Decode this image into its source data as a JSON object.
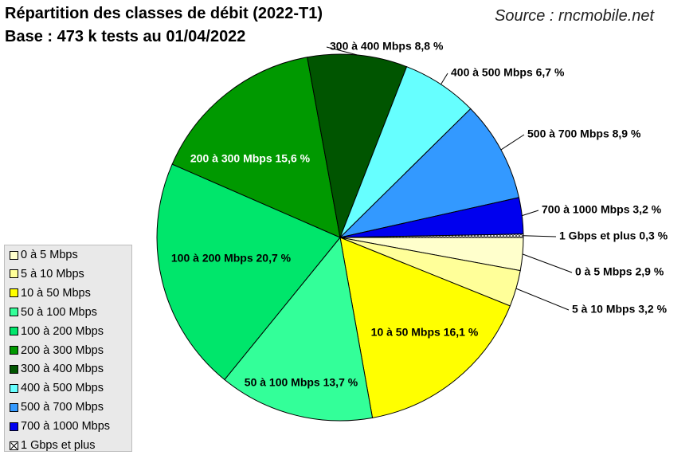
{
  "header": {
    "title": "Répartition des classes de débit (2022-T1)",
    "subtitle": "Base : 473 k tests au 01/04/2022",
    "source": "Source : rncmobile.net"
  },
  "chart_data": {
    "type": "pie",
    "title": "Répartition des classes de débit (2022-T1)",
    "subtitle": "Base : 473 k tests au 01/04/2022",
    "unit": "%",
    "start_direction": "right (3 o'clock), slices proceed clockwise starting from '0 à 5 Mbps'",
    "slices": [
      {
        "name": "0 à 5 Mbps",
        "value": 2.9,
        "label": "0 à 5 Mbps 2,9 %",
        "color": "#ffffcc"
      },
      {
        "name": "5 à 10 Mbps",
        "value": 3.2,
        "label": "5 à 10 Mbps 3,2 %",
        "color": "#ffff99"
      },
      {
        "name": "10 à 50 Mbps",
        "value": 16.1,
        "label": "10 à 50 Mbps 16,1 %",
        "color": "#ffff00"
      },
      {
        "name": "50 à 100 Mbps",
        "value": 13.7,
        "label": "50 à 100 Mbps 13,7 %",
        "color": "#33ff99"
      },
      {
        "name": "100 à 200 Mbps",
        "value": 20.7,
        "label": "100 à 200 Mbps 20,7 %",
        "color": "#00e66b"
      },
      {
        "name": "200 à 300 Mbps",
        "value": 15.6,
        "label": "200 à 300 Mbps 15,6 %",
        "color": "#009900"
      },
      {
        "name": "300 à 400 Mbps",
        "value": 8.8,
        "label": "300 à 400 Mbps  8,8 %",
        "color": "#005500"
      },
      {
        "name": "400 à 500 Mbps",
        "value": 6.7,
        "label": "400 à 500 Mbps  6,7 %",
        "color": "#66ffff"
      },
      {
        "name": "500 à 700 Mbps",
        "value": 8.9,
        "label": "500 à 700 Mbps  8,9 %",
        "color": "#3399ff"
      },
      {
        "name": "700 à 1000 Mbps",
        "value": 3.2,
        "label": "700 à 1000 Mbps  3,2 %",
        "color": "#0000ee"
      },
      {
        "name": "1 Gbps et plus",
        "value": 0.3,
        "label": "1 Gbps et plus 0,3 %",
        "color": "#ffffff",
        "pattern": "hatch"
      }
    ],
    "legend": {
      "placement": "bottom-left",
      "items": [
        "0 à 5 Mbps",
        "5 à 10 Mbps",
        "10 à 50 Mbps",
        "50 à 100 Mbps",
        "100 à 200 Mbps",
        "200 à 300 Mbps",
        "300 à 400 Mbps",
        "400 à 500 Mbps",
        "500 à 700 Mbps",
        "700 à 1000 Mbps",
        "1 Gbps et plus"
      ]
    }
  }
}
